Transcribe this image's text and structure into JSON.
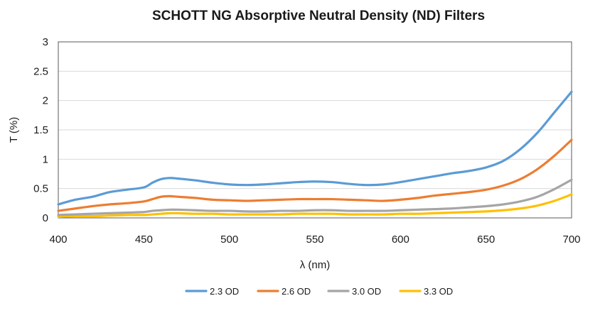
{
  "chart_data": {
    "type": "line",
    "title": "SCHOTT NG Absorptive Neutral Density (ND) Filters",
    "xlabel": "λ (nm)",
    "ylabel": "T (%)",
    "xlim": [
      400,
      700
    ],
    "ylim": [
      0,
      3
    ],
    "xticks": [
      "400",
      "450",
      "500",
      "550",
      "600",
      "650",
      "700"
    ],
    "yticks": [
      "0",
      "0.5",
      "1",
      "1.5",
      "2",
      "2.5",
      "3"
    ],
    "grid": true,
    "legend_position": "bottom",
    "x": [
      400,
      410,
      420,
      430,
      440,
      450,
      455,
      460,
      465,
      470,
      480,
      490,
      500,
      510,
      520,
      530,
      540,
      550,
      560,
      570,
      580,
      590,
      600,
      610,
      620,
      630,
      640,
      650,
      660,
      670,
      680,
      690,
      700
    ],
    "series": [
      {
        "name": "2.3 OD",
        "color": "#5b9bd5",
        "values": [
          0.23,
          0.31,
          0.36,
          0.44,
          0.48,
          0.52,
          0.6,
          0.66,
          0.68,
          0.67,
          0.64,
          0.6,
          0.57,
          0.56,
          0.57,
          0.59,
          0.61,
          0.62,
          0.61,
          0.58,
          0.56,
          0.57,
          0.61,
          0.66,
          0.71,
          0.76,
          0.8,
          0.86,
          0.97,
          1.17,
          1.45,
          1.8,
          2.15
        ]
      },
      {
        "name": "2.6 OD",
        "color": "#ed7d31",
        "values": [
          0.12,
          0.16,
          0.2,
          0.23,
          0.25,
          0.28,
          0.32,
          0.36,
          0.37,
          0.36,
          0.34,
          0.31,
          0.3,
          0.29,
          0.3,
          0.31,
          0.32,
          0.32,
          0.32,
          0.31,
          0.3,
          0.29,
          0.31,
          0.34,
          0.38,
          0.41,
          0.44,
          0.48,
          0.55,
          0.66,
          0.83,
          1.06,
          1.33
        ]
      },
      {
        "name": "3.0 OD",
        "color": "#a5a5a5",
        "values": [
          0.05,
          0.06,
          0.07,
          0.08,
          0.09,
          0.1,
          0.12,
          0.13,
          0.14,
          0.14,
          0.13,
          0.12,
          0.12,
          0.11,
          0.11,
          0.12,
          0.12,
          0.13,
          0.13,
          0.12,
          0.12,
          0.12,
          0.13,
          0.14,
          0.15,
          0.16,
          0.18,
          0.2,
          0.23,
          0.28,
          0.36,
          0.49,
          0.65
        ]
      },
      {
        "name": "3.3 OD",
        "color": "#ffc000",
        "values": [
          0.02,
          0.03,
          0.03,
          0.04,
          0.05,
          0.05,
          0.06,
          0.07,
          0.08,
          0.08,
          0.07,
          0.07,
          0.06,
          0.06,
          0.06,
          0.06,
          0.07,
          0.07,
          0.07,
          0.06,
          0.06,
          0.06,
          0.07,
          0.07,
          0.08,
          0.09,
          0.1,
          0.11,
          0.13,
          0.16,
          0.21,
          0.29,
          0.4
        ]
      }
    ]
  }
}
